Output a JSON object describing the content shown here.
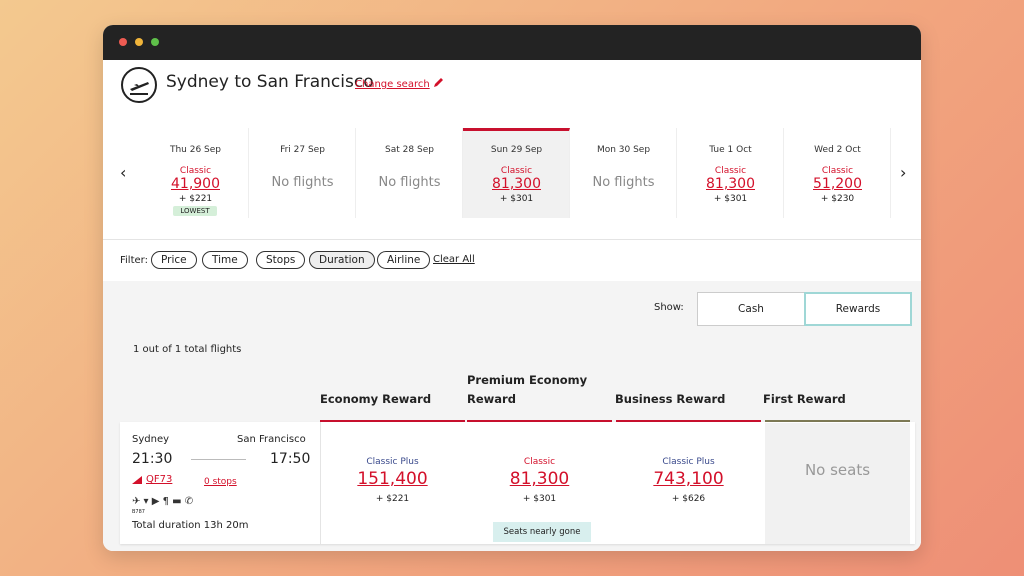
{
  "header": {
    "title": "Sydney to San Francisco",
    "change_search": "Change search"
  },
  "dates": [
    {
      "day": "Thu 26 Sep",
      "fare": "Classic",
      "points": "41,900",
      "tax": "+ $221",
      "badge": "LOWEST"
    },
    {
      "day": "Fri 27 Sep",
      "status": "No flights"
    },
    {
      "day": "Sat 28 Sep",
      "status": "No flights"
    },
    {
      "day": "Sun 29 Sep",
      "fare": "Classic",
      "points": "81,300",
      "tax": "+ $301",
      "selected": true
    },
    {
      "day": "Mon 30 Sep",
      "status": "No flights"
    },
    {
      "day": "Tue 1 Oct",
      "fare": "Classic",
      "points": "81,300",
      "tax": "+ $301"
    },
    {
      "day": "Wed 2 Oct",
      "fare": "Classic",
      "points": "51,200",
      "tax": "+ $230"
    }
  ],
  "filter": {
    "label": "Filter:",
    "options": [
      "Price",
      "Time",
      "Stops",
      "Duration",
      "Airline"
    ],
    "clear": "Clear All"
  },
  "show": {
    "label": "Show:",
    "options": [
      "Cash",
      "Rewards"
    ]
  },
  "results_count": "1 out of 1 total flights",
  "columns": [
    "Economy Reward",
    "Premium Economy Reward",
    "Business Reward",
    "First Reward"
  ],
  "flight": {
    "from": "Sydney",
    "to": "San Francisco",
    "depart": "21:30",
    "arrive": "17:50",
    "flight_no": "QF73",
    "stops": "0 stops",
    "aircraft": "B787",
    "duration": "Total duration 13h 20m",
    "fares": [
      {
        "fare": "Classic Plus",
        "points": "151,400",
        "tax": "+ $221"
      },
      {
        "fare": "Classic",
        "points": "81,300",
        "tax": "+ $301",
        "note": "Seats nearly gone"
      },
      {
        "fare": "Classic Plus",
        "points": "743,100",
        "tax": "+ $626"
      },
      {
        "status": "No seats"
      }
    ]
  }
}
